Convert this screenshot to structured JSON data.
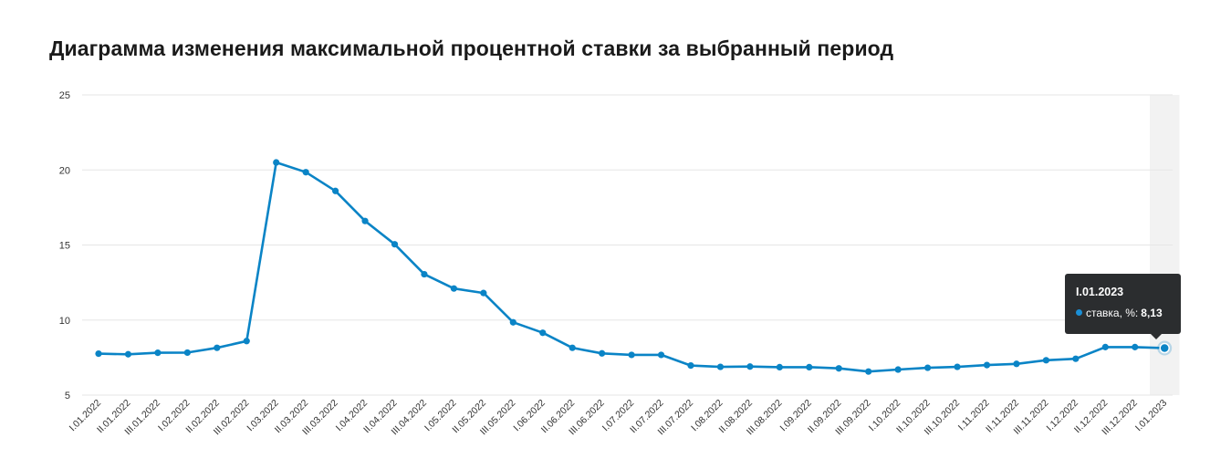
{
  "title": "Диаграмма изменения максимальной процентной ставки за выбранный период",
  "colors": {
    "line": "#0a84c6",
    "grid": "#e6e6e6",
    "highlight_band": "#f2f2f2",
    "tooltip_bg": "#2b2d2f",
    "tooltip_dot": "#1a8fd6"
  },
  "tooltip": {
    "date": "I.01.2023",
    "series_label": "ставка, %:",
    "value": "8,13"
  },
  "chart_data": {
    "type": "line",
    "title": "Диаграмма изменения максимальной процентной ставки за выбранный период",
    "xlabel": "",
    "ylabel": "",
    "ylim": [
      5,
      25
    ],
    "yticks": [
      5,
      10,
      15,
      20,
      25
    ],
    "grid": true,
    "legend": "none",
    "highlighted_category": "I.01.2023",
    "categories": [
      "I.01.2022",
      "II.01.2022",
      "III.01.2022",
      "I.02.2022",
      "II.02.2022",
      "III.02.2022",
      "I.03.2022",
      "II.03.2022",
      "III.03.2022",
      "I.04.2022",
      "II.04.2022",
      "III.04.2022",
      "I.05.2022",
      "II.05.2022",
      "III.05.2022",
      "I.06.2022",
      "II.06.2022",
      "III.06.2022",
      "I.07.2022",
      "II.07.2022",
      "III.07.2022",
      "I.08.2022",
      "II.08.2022",
      "III.08.2022",
      "I.09.2022",
      "II.09.2022",
      "III.09.2022",
      "I.10.2022",
      "II.10.2022",
      "III.10.2022",
      "I.11.2022",
      "II.11.2022",
      "III.11.2022",
      "I.12.2022",
      "II.12.2022",
      "III.12.2022",
      "I.01.2023"
    ],
    "series": [
      {
        "name": "ставка, %",
        "values": [
          7.76,
          7.72,
          7.82,
          7.83,
          8.15,
          8.6,
          20.5,
          19.85,
          18.6,
          16.6,
          15.05,
          13.05,
          12.1,
          11.8,
          9.85,
          9.15,
          8.15,
          7.78,
          7.68,
          7.68,
          6.97,
          6.88,
          6.9,
          6.86,
          6.86,
          6.78,
          6.57,
          6.7,
          6.82,
          6.88,
          7.0,
          7.08,
          7.32,
          7.42,
          8.2,
          8.2,
          8.13
        ]
      }
    ]
  }
}
